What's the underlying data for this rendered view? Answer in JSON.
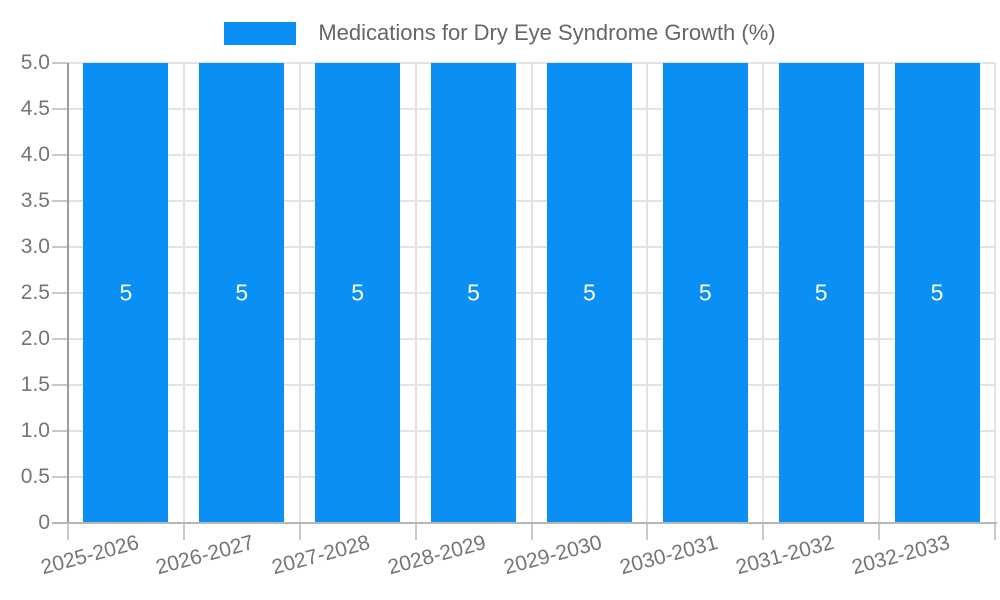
{
  "chart_data": {
    "type": "bar",
    "title": "Medications for Dry Eye Syndrome Growth (%)",
    "categories": [
      "2025-2026",
      "2026-2027",
      "2027-2028",
      "2028-2029",
      "2029-2030",
      "2030-2031",
      "2031-2032",
      "2032-2033"
    ],
    "series": [
      {
        "name": "Medications for Dry Eye Syndrome Growth (%)",
        "values": [
          5,
          5,
          5,
          5,
          5,
          5,
          5,
          5
        ]
      }
    ],
    "bar_value_labels": [
      "5",
      "5",
      "5",
      "5",
      "5",
      "5",
      "5",
      "5"
    ],
    "xlabel": "",
    "ylabel": "",
    "ylim": [
      0,
      5
    ],
    "y_tick_labels": [
      "5.0",
      "4.5",
      "4.0",
      "3.5",
      "3.0",
      "2.5",
      "2.0",
      "1.5",
      "1.0",
      "0.5",
      "0"
    ],
    "grid": true,
    "legend_position": "top-center",
    "colors": {
      "bar": "#0a90f5",
      "bar_label": "#ffffff",
      "grid": "#e3e3e3",
      "tick": "#c9c9c9",
      "y_axis_line": "#9b9b9b",
      "x_axis_line": "#b6b6b6",
      "tick_label": "#757575",
      "legend_text": "#666666",
      "background": "#ffffff"
    }
  }
}
